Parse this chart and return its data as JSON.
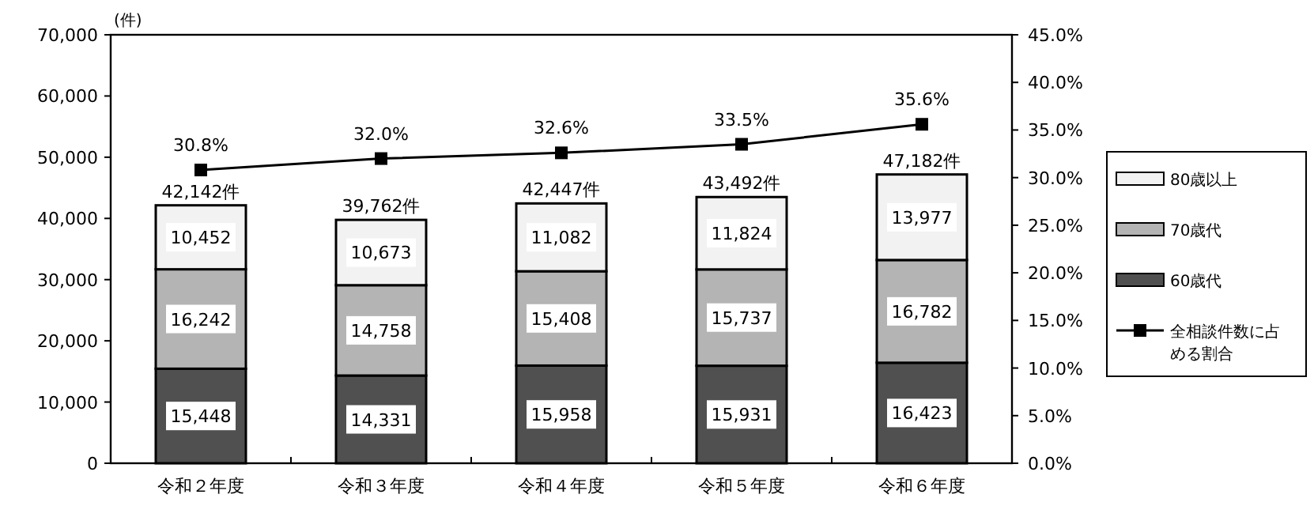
{
  "chart_data": {
    "type": "bar",
    "stacked": true,
    "ylabel": "(件)",
    "categories": [
      "令和２年度",
      "令和３年度",
      "令和４年度",
      "令和５年度",
      "令和６年度"
    ],
    "series": [
      {
        "name": "60歳代",
        "color": "#505050",
        "values": [
          15448,
          14331,
          15958,
          15931,
          16423
        ],
        "value_labels": [
          "15,448",
          "14,331",
          "15,958",
          "15,931",
          "16,423"
        ]
      },
      {
        "name": "70歳代",
        "color": "#b4b4b4",
        "values": [
          16242,
          14758,
          15408,
          15737,
          16782
        ],
        "value_labels": [
          "16,242",
          "14,758",
          "15,408",
          "15,737",
          "16,782"
        ]
      },
      {
        "name": "80歳以上",
        "color": "#f2f2f2",
        "values": [
          10452,
          10673,
          11082,
          11824,
          13977
        ],
        "value_labels": [
          "10,452",
          "10,673",
          "11,082",
          "11,824",
          "13,977"
        ]
      },
      {
        "name": "全相談件数に占める割合",
        "type": "line",
        "axis": "y2",
        "color": "#000000",
        "marker": "square",
        "values": [
          30.8,
          32.0,
          32.6,
          33.5,
          35.6
        ],
        "value_labels": [
          "30.8%",
          "32.0%",
          "32.6%",
          "33.5%",
          "35.6%"
        ]
      }
    ],
    "totals": [
      "42,142件",
      "39,762件",
      "42,447件",
      "43,492件",
      "47,182件"
    ],
    "ylim": [
      0,
      70000
    ],
    "yticks": [
      0,
      {
        "value": 10000,
        "label": "10,000"
      },
      {
        "value": 20000,
        "label": "20,000"
      },
      {
        "value": 30000,
        "label": "30,000"
      },
      {
        "value": 40000,
        "label": "40,000"
      },
      {
        "value": 50000,
        "label": "50,000"
      },
      {
        "value": 60000,
        "label": "60,000"
      },
      {
        "value": 70000,
        "label": "70,000"
      }
    ],
    "y2lim": [
      0,
      45
    ],
    "y2ticks": [
      {
        "value": 0,
        "label": "0.0%"
      },
      {
        "value": 5,
        "label": "5.0%"
      },
      {
        "value": 10,
        "label": "10.0%"
      },
      {
        "value": 15,
        "label": "15.0%"
      },
      {
        "value": 20,
        "label": "20.0%"
      },
      {
        "value": 25,
        "label": "25.0%"
      },
      {
        "value": 30,
        "label": "30.0%"
      },
      {
        "value": 35,
        "label": "35.0%"
      },
      {
        "value": 40,
        "label": "40.0%"
      },
      {
        "value": 45,
        "label": "45.0%"
      }
    ],
    "legend": "right",
    "grid": false
  }
}
